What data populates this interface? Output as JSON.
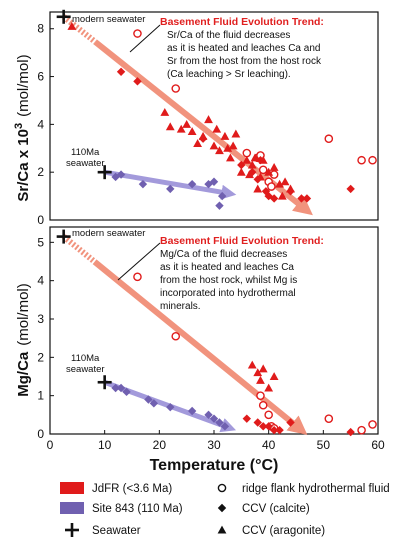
{
  "colors": {
    "jdfr": "#e01b1b",
    "site843": "#7060b0",
    "trend": "#f08870",
    "trend_arrow_blue": "#9a90d8",
    "black": "#111111",
    "trend_title": "#e02020"
  },
  "chart_data": [
    {
      "type": "scatter",
      "panel": "top",
      "ylabel_main": "Sr/Ca x 10",
      "ylabel_exp": "3",
      "ylabel_unit": "(mol/mol)",
      "xlim": [
        0,
        60
      ],
      "ylim": [
        0,
        8.7
      ],
      "yticks": [
        0,
        2,
        4,
        6,
        8
      ],
      "seawater_labels": {
        "modern": "modern seawater",
        "ancient_1": "110Ma",
        "ancient_2": "seawater"
      },
      "trend_text": {
        "title": "Basement Fluid Evolution Trend:",
        "lines": [
          "Sr/Ca of the fluid decreases",
          "as it is heated and leaches Ca and",
          "Sr from the host from the host rock",
          "(Ca leaching > Sr leaching)."
        ]
      },
      "series": [
        {
          "name": "JdFR (<3.6 Ma) ridge flank hydrothermal fluid",
          "marker": "open-circle",
          "color": "jdfr",
          "points": [
            [
              16,
              7.8
            ],
            [
              23,
              5.5
            ],
            [
              36,
              2.8
            ],
            [
              38,
              2.6
            ],
            [
              38.5,
              2.7
            ],
            [
              39,
              2.1
            ],
            [
              40,
              1.6
            ],
            [
              40.5,
              1.4
            ],
            [
              41,
              1.9
            ],
            [
              51,
              3.4
            ],
            [
              57,
              2.5
            ],
            [
              59,
              2.5
            ]
          ]
        },
        {
          "name": "JdFR (<3.6 Ma) CCV (calcite)",
          "marker": "diamond",
          "color": "jdfr",
          "points": [
            [
              13,
              6.2
            ],
            [
              16,
              5.8
            ],
            [
              28,
              3.4
            ],
            [
              35,
              2.3
            ],
            [
              37,
              2.0
            ],
            [
              38,
              1.7
            ],
            [
              38.5,
              2.5
            ],
            [
              39.5,
              1.2
            ],
            [
              40,
              1.0
            ],
            [
              41,
              0.9
            ],
            [
              44,
              1.2
            ],
            [
              46,
              0.9
            ],
            [
              47,
              0.9
            ],
            [
              55,
              1.3
            ]
          ]
        },
        {
          "name": "JdFR (<3.6 Ma) CCV (aragonite)",
          "marker": "triangle",
          "color": "jdfr",
          "points": [
            [
              4,
              8.1
            ],
            [
              21,
              4.5
            ],
            [
              22,
              3.9
            ],
            [
              24,
              3.8
            ],
            [
              25,
              4.0
            ],
            [
              26,
              3.7
            ],
            [
              27,
              3.2
            ],
            [
              28,
              3.5
            ],
            [
              29,
              4.2
            ],
            [
              30,
              3.1
            ],
            [
              30.5,
              3.8
            ],
            [
              31,
              2.9
            ],
            [
              32,
              3.5
            ],
            [
              32.5,
              3.0
            ],
            [
              33,
              2.6
            ],
            [
              33.5,
              3.1
            ],
            [
              34,
              3.6
            ],
            [
              35,
              2.0
            ],
            [
              36,
              2.5
            ],
            [
              36.5,
              1.9
            ],
            [
              37,
              2.3
            ],
            [
              37.5,
              2.6
            ],
            [
              38,
              1.3
            ],
            [
              38.5,
              1.8
            ],
            [
              39,
              2.5
            ],
            [
              40,
              2.0
            ],
            [
              41,
              2.2
            ],
            [
              42,
              1.5
            ],
            [
              42.5,
              1.0
            ],
            [
              43,
              1.6
            ],
            [
              44,
              1.3
            ]
          ]
        },
        {
          "name": "Site 843 (110 Ma) CCV (calcite)",
          "marker": "diamond",
          "color": "site843",
          "points": [
            [
              12,
              1.8
            ],
            [
              13,
              1.9
            ],
            [
              17,
              1.5
            ],
            [
              22,
              1.3
            ],
            [
              26,
              1.5
            ],
            [
              29,
              1.5
            ],
            [
              30,
              1.6
            ],
            [
              31,
              0.6
            ],
            [
              31.5,
              1.0
            ]
          ]
        }
      ],
      "seawater": [
        [
          2.5,
          8.5
        ],
        [
          10,
          2.0
        ]
      ],
      "trend_arrow": {
        "from": [
          2.5,
          8.5
        ],
        "to": [
          47,
          0.4
        ]
      },
      "site_arrow": {
        "from": [
          10,
          2.0
        ],
        "to": [
          33,
          1.1
        ]
      }
    },
    {
      "type": "scatter",
      "panel": "bottom",
      "ylabel_main": "Mg/Ca",
      "ylabel_unit": "(mol/mol)",
      "xlabel": "Temperature (°C)",
      "xlim": [
        0,
        60
      ],
      "ylim": [
        0,
        5.4
      ],
      "xticks": [
        0,
        10,
        20,
        30,
        40,
        50,
        60
      ],
      "yticks": [
        0,
        1,
        2,
        3,
        4,
        5
      ],
      "seawater_labels": {
        "modern": "modern seawater",
        "ancient_1": "110Ma",
        "ancient_2": "seawater"
      },
      "trend_text": {
        "title": "Basement Fluid Evolution Trend:",
        "lines": [
          "Mg/Ca of the fluid decreases",
          "as it is heated and leaches Ca",
          "from the host rock, whilst Mg is",
          "incorporated into hydrothermal",
          "minerals."
        ]
      },
      "series": [
        {
          "name": "JdFR (<3.6 Ma) ridge flank hydrothermal fluid",
          "marker": "open-circle",
          "color": "jdfr",
          "points": [
            [
              16,
              4.1
            ],
            [
              23,
              2.55
            ],
            [
              38.5,
              1.0
            ],
            [
              39,
              0.75
            ],
            [
              40,
              0.5
            ],
            [
              40.5,
              0.2
            ],
            [
              41,
              0.15
            ],
            [
              51,
              0.4
            ],
            [
              57,
              0.1
            ],
            [
              59,
              0.25
            ]
          ]
        },
        {
          "name": "JdFR (<3.6 Ma) CCV (calcite)",
          "marker": "diamond",
          "color": "jdfr",
          "points": [
            [
              36,
              0.4
            ],
            [
              38,
              0.3
            ],
            [
              39,
              0.2
            ],
            [
              40,
              0.2
            ],
            [
              41,
              0.1
            ],
            [
              42,
              0.1
            ],
            [
              44,
              0.3
            ],
            [
              55,
              0.05
            ]
          ]
        },
        {
          "name": "JdFR (<3.6 Ma) CCV (aragonite)",
          "marker": "triangle",
          "color": "jdfr",
          "points": [
            [
              37,
              1.8
            ],
            [
              38,
              1.6
            ],
            [
              38.5,
              1.4
            ],
            [
              39,
              1.7
            ],
            [
              40,
              1.2
            ],
            [
              41,
              1.5
            ]
          ]
        },
        {
          "name": "Site 843 (110 Ma) CCV (calcite)",
          "marker": "diamond",
          "color": "site843",
          "points": [
            [
              12,
              1.2
            ],
            [
              13,
              1.2
            ],
            [
              14,
              1.1
            ],
            [
              18,
              0.9
            ],
            [
              19,
              0.8
            ],
            [
              22,
              0.7
            ],
            [
              26,
              0.6
            ],
            [
              29,
              0.5
            ],
            [
              30,
              0.4
            ],
            [
              31,
              0.3
            ],
            [
              32,
              0.2
            ]
          ]
        }
      ],
      "seawater": [
        [
          2.5,
          5.15
        ],
        [
          10,
          1.35
        ]
      ],
      "trend_arrow": {
        "from": [
          2.5,
          5.15
        ],
        "to": [
          46,
          0.1
        ]
      },
      "site_arrow": {
        "from": [
          10,
          1.35
        ],
        "to": [
          33,
          0.15
        ]
      }
    }
  ],
  "legend": {
    "items": [
      {
        "marker": "rect",
        "color": "jdfr",
        "label": "JdFR (<3.6 Ma)"
      },
      {
        "marker": "rect",
        "color": "site843",
        "label": "Site 843 (110 Ma)"
      },
      {
        "marker": "plus",
        "color": "black",
        "label": "Seawater"
      },
      {
        "marker": "open-circle",
        "color": "black",
        "label": "ridge flank hydrothermal fluid"
      },
      {
        "marker": "diamond",
        "color": "black",
        "label": "CCV (calcite)"
      },
      {
        "marker": "triangle",
        "color": "black",
        "label": "CCV (aragonite)"
      }
    ]
  }
}
